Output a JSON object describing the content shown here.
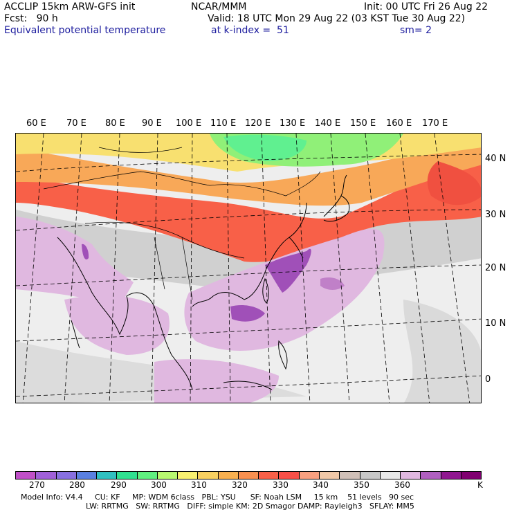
{
  "header": {
    "model": "ACCLIP 15km ARW-GFS init",
    "org": "NCAR/MMM",
    "init": "Init: 00 UTC Fri 26 Aug 22",
    "fcst": "Fcst:   90 h",
    "valid": "Valid: 18 UTC Mon 29 Aug 22 (03 KST Tue 30 Aug 22)",
    "field": "Equivalent potential temperature",
    "level": "at k-index =  51",
    "smooth": "sm= 2"
  },
  "lon_labels": [
    "60 E",
    "70 E",
    "80 E",
    "90 E",
    "100 E",
    "110 E",
    "120 E",
    "130 E",
    "140 E",
    "150 E",
    "160 E",
    "170 E"
  ],
  "lat_labels": [
    "40 N",
    "30 N",
    "20 N",
    "10 N",
    "0"
  ],
  "colorbar": {
    "colors": [
      "#c050c8",
      "#a060d8",
      "#8870e0",
      "#5a80e0",
      "#30c0c0",
      "#30e090",
      "#60f080",
      "#b8f870",
      "#f8f070",
      "#f8d060",
      "#f8b050",
      "#f89050",
      "#f86048",
      "#f85048",
      "#f8a080",
      "#f0c8a8",
      "#d0c0b8",
      "#c8c8c8",
      "#e8e8e8",
      "#e0b8e0",
      "#b060c0",
      "#901890",
      "#800070"
    ],
    "labels": [
      "270",
      "280",
      "290",
      "300",
      "310",
      "320",
      "330",
      "340",
      "350",
      "360",
      "K"
    ]
  },
  "footer": {
    "line1": "Model Info: V4.4     CU: KF     MP: WDM 6class   PBL: YSU      SF: Noah LSM     15 km    51 levels   90 sec",
    "line2": "LW: RRTMG   SW: RRTMG   DIFF: simple KM: 2D Smagor DAMP: Rayleigh3   SFLAY: MM5"
  }
}
